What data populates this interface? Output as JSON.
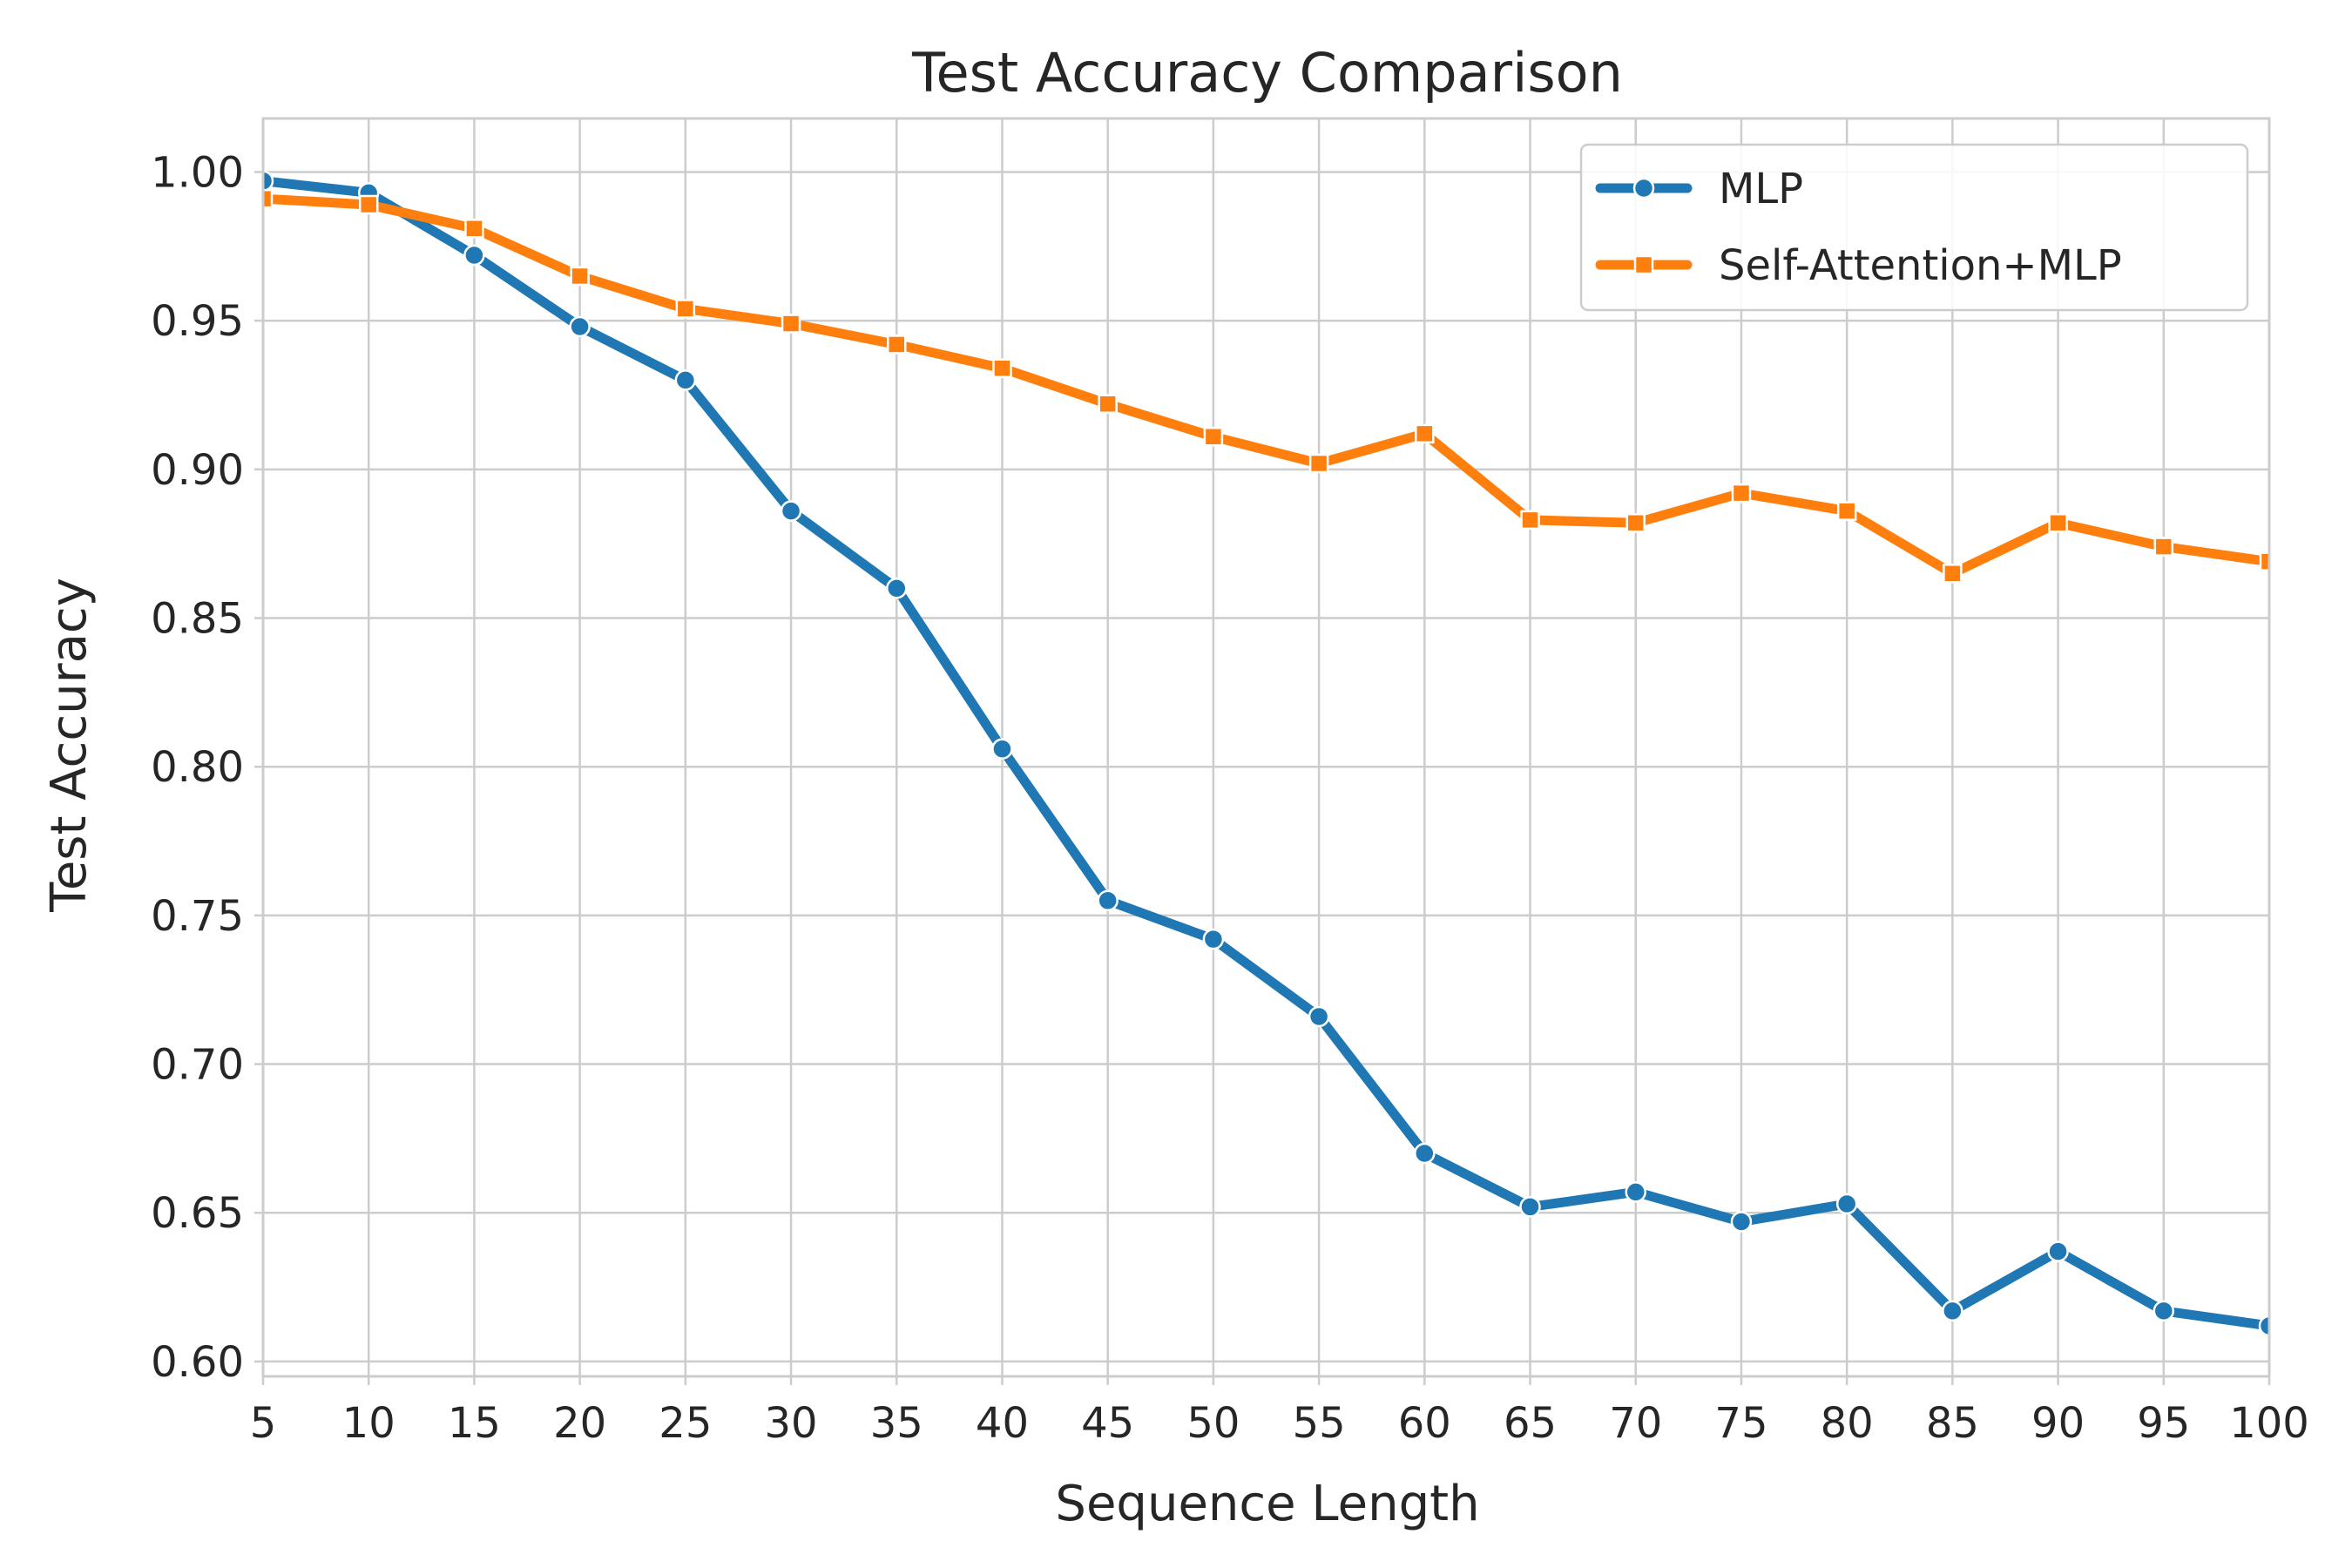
{
  "chart_data": {
    "type": "line",
    "title": "Test Accuracy Comparison",
    "xlabel": "Sequence Length",
    "ylabel": "Test Accuracy",
    "x": [
      5,
      10,
      15,
      20,
      25,
      30,
      35,
      40,
      45,
      50,
      55,
      60,
      65,
      70,
      75,
      80,
      85,
      90,
      95,
      100
    ],
    "xlim": [
      5,
      100
    ],
    "ylim": [
      0.595,
      1.018
    ],
    "x_ticks": [
      5,
      10,
      15,
      20,
      25,
      30,
      35,
      40,
      45,
      50,
      55,
      60,
      65,
      70,
      75,
      80,
      85,
      90,
      95,
      100
    ],
    "y_ticks": [
      "0.60",
      "0.65",
      "0.70",
      "0.75",
      "0.80",
      "0.85",
      "0.90",
      "0.95",
      "1.00"
    ],
    "grid": true,
    "legend_position": "top-right",
    "series": [
      {
        "name": "MLP",
        "color": "#1f77b4",
        "marker": "circle",
        "values": [
          0.997,
          0.993,
          0.972,
          0.948,
          0.93,
          0.886,
          0.86,
          0.806,
          0.755,
          0.742,
          0.716,
          0.67,
          0.652,
          0.657,
          0.647,
          0.653,
          0.617,
          0.637,
          0.617,
          0.612
        ]
      },
      {
        "name": "Self-Attention+MLP",
        "color": "#ff7f0e",
        "marker": "square",
        "values": [
          0.991,
          0.989,
          0.981,
          0.965,
          0.954,
          0.949,
          0.942,
          0.934,
          0.922,
          0.911,
          0.902,
          0.912,
          0.883,
          0.882,
          0.892,
          0.886,
          0.865,
          0.882,
          0.874,
          0.869
        ]
      }
    ]
  }
}
